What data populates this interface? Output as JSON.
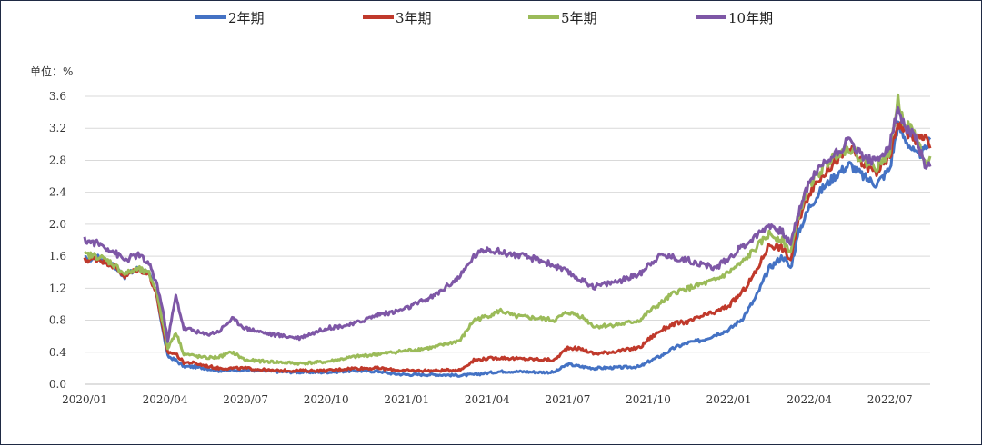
{
  "chart_data": {
    "type": "line",
    "unit_label": "单位：%",
    "ylim": [
      0,
      3.6
    ],
    "y_ticks": [
      "0.0",
      "0.4",
      "0.8",
      "1.2",
      "1.6",
      "2.0",
      "2.4",
      "2.8",
      "3.2",
      "3.6"
    ],
    "x_ticks": [
      "2020/01",
      "2020/04",
      "2020/07",
      "2020/10",
      "2021/01",
      "2021/04",
      "2021/07",
      "2021/10",
      "2022/01",
      "2022/04",
      "2022/07"
    ],
    "grid": true,
    "legend_position": "top",
    "x_range_months": [
      0,
      31.5
    ],
    "series": [
      {
        "name": "2年期",
        "color": "#4472c4",
        "points": [
          [
            0,
            1.56
          ],
          [
            0.5,
            1.58
          ],
          [
            1.0,
            1.5
          ],
          [
            1.5,
            1.35
          ],
          [
            2.0,
            1.45
          ],
          [
            2.4,
            1.38
          ],
          [
            2.7,
            1.1
          ],
          [
            2.9,
            0.7
          ],
          [
            3.1,
            0.35
          ],
          [
            3.4,
            0.3
          ],
          [
            3.7,
            0.22
          ],
          [
            4.0,
            0.22
          ],
          [
            4.5,
            0.2
          ],
          [
            5.0,
            0.17
          ],
          [
            6.0,
            0.18
          ],
          [
            7.0,
            0.16
          ],
          [
            8.0,
            0.15
          ],
          [
            9.0,
            0.15
          ],
          [
            10.0,
            0.17
          ],
          [
            11.0,
            0.16
          ],
          [
            11.5,
            0.13
          ],
          [
            12.0,
            0.12
          ],
          [
            13.0,
            0.12
          ],
          [
            14.0,
            0.11
          ],
          [
            14.5,
            0.12
          ],
          [
            15.0,
            0.14
          ],
          [
            15.5,
            0.16
          ],
          [
            16.0,
            0.16
          ],
          [
            17.0,
            0.15
          ],
          [
            17.5,
            0.15
          ],
          [
            18.0,
            0.25
          ],
          [
            18.5,
            0.22
          ],
          [
            19.0,
            0.2
          ],
          [
            20.0,
            0.21
          ],
          [
            20.7,
            0.22
          ],
          [
            21.0,
            0.28
          ],
          [
            21.5,
            0.36
          ],
          [
            22.0,
            0.46
          ],
          [
            22.5,
            0.52
          ],
          [
            23.0,
            0.55
          ],
          [
            23.5,
            0.62
          ],
          [
            24.0,
            0.68
          ],
          [
            24.5,
            0.82
          ],
          [
            25.0,
            1.08
          ],
          [
            25.5,
            1.45
          ],
          [
            26.0,
            1.6
          ],
          [
            26.3,
            1.45
          ],
          [
            26.6,
            1.9
          ],
          [
            27.0,
            2.22
          ],
          [
            27.5,
            2.45
          ],
          [
            28.0,
            2.62
          ],
          [
            28.5,
            2.75
          ],
          [
            29.0,
            2.6
          ],
          [
            29.5,
            2.5
          ],
          [
            30.0,
            2.7
          ],
          [
            30.3,
            3.25
          ],
          [
            30.5,
            3.1
          ],
          [
            31.0,
            2.85
          ],
          [
            31.3,
            2.92
          ],
          [
            31.5,
            3.06
          ]
        ]
      },
      {
        "name": "3年期",
        "color": "#c0392b",
        "points": [
          [
            0,
            1.55
          ],
          [
            0.5,
            1.57
          ],
          [
            1.0,
            1.5
          ],
          [
            1.5,
            1.35
          ],
          [
            2.0,
            1.44
          ],
          [
            2.4,
            1.38
          ],
          [
            2.7,
            1.1
          ],
          [
            2.9,
            0.72
          ],
          [
            3.1,
            0.4
          ],
          [
            3.4,
            0.38
          ],
          [
            3.7,
            0.27
          ],
          [
            4.0,
            0.27
          ],
          [
            4.5,
            0.23
          ],
          [
            5.0,
            0.2
          ],
          [
            6.0,
            0.2
          ],
          [
            7.0,
            0.17
          ],
          [
            8.0,
            0.17
          ],
          [
            9.0,
            0.17
          ],
          [
            10.0,
            0.2
          ],
          [
            11.0,
            0.2
          ],
          [
            11.5,
            0.18
          ],
          [
            12.0,
            0.17
          ],
          [
            13.0,
            0.17
          ],
          [
            14.0,
            0.18
          ],
          [
            14.5,
            0.3
          ],
          [
            15.0,
            0.32
          ],
          [
            15.5,
            0.33
          ],
          [
            16.0,
            0.32
          ],
          [
            17.0,
            0.31
          ],
          [
            17.5,
            0.3
          ],
          [
            18.0,
            0.46
          ],
          [
            18.5,
            0.44
          ],
          [
            19.0,
            0.38
          ],
          [
            20.0,
            0.42
          ],
          [
            20.7,
            0.46
          ],
          [
            21.0,
            0.56
          ],
          [
            21.5,
            0.68
          ],
          [
            22.0,
            0.76
          ],
          [
            22.5,
            0.78
          ],
          [
            23.0,
            0.85
          ],
          [
            23.5,
            0.9
          ],
          [
            24.0,
            0.98
          ],
          [
            24.5,
            1.15
          ],
          [
            25.0,
            1.4
          ],
          [
            25.5,
            1.75
          ],
          [
            26.0,
            1.7
          ],
          [
            26.3,
            1.55
          ],
          [
            26.6,
            2.05
          ],
          [
            27.0,
            2.4
          ],
          [
            27.5,
            2.62
          ],
          [
            28.0,
            2.8
          ],
          [
            28.5,
            2.95
          ],
          [
            29.0,
            2.75
          ],
          [
            29.5,
            2.65
          ],
          [
            30.0,
            2.85
          ],
          [
            30.3,
            3.28
          ],
          [
            30.5,
            3.2
          ],
          [
            31.0,
            3.05
          ],
          [
            31.3,
            3.12
          ],
          [
            31.5,
            2.95
          ]
        ]
      },
      {
        "name": "5年期",
        "color": "#9bbb59",
        "points": [
          [
            0,
            1.62
          ],
          [
            0.5,
            1.6
          ],
          [
            1.0,
            1.52
          ],
          [
            1.5,
            1.38
          ],
          [
            2.0,
            1.44
          ],
          [
            2.4,
            1.38
          ],
          [
            2.7,
            1.15
          ],
          [
            2.9,
            0.8
          ],
          [
            3.1,
            0.45
          ],
          [
            3.4,
            0.65
          ],
          [
            3.7,
            0.38
          ],
          [
            4.0,
            0.36
          ],
          [
            4.5,
            0.33
          ],
          [
            5.0,
            0.34
          ],
          [
            5.5,
            0.4
          ],
          [
            6.0,
            0.3
          ],
          [
            7.0,
            0.28
          ],
          [
            8.0,
            0.26
          ],
          [
            9.0,
            0.28
          ],
          [
            10.0,
            0.34
          ],
          [
            11.0,
            0.38
          ],
          [
            11.5,
            0.4
          ],
          [
            12.0,
            0.42
          ],
          [
            13.0,
            0.46
          ],
          [
            14.0,
            0.55
          ],
          [
            14.5,
            0.8
          ],
          [
            15.0,
            0.85
          ],
          [
            15.5,
            0.92
          ],
          [
            16.0,
            0.85
          ],
          [
            17.0,
            0.82
          ],
          [
            17.5,
            0.8
          ],
          [
            18.0,
            0.9
          ],
          [
            18.5,
            0.85
          ],
          [
            19.0,
            0.72
          ],
          [
            20.0,
            0.75
          ],
          [
            20.7,
            0.8
          ],
          [
            21.0,
            0.9
          ],
          [
            21.5,
            1.02
          ],
          [
            22.0,
            1.15
          ],
          [
            22.5,
            1.2
          ],
          [
            23.0,
            1.25
          ],
          [
            23.5,
            1.3
          ],
          [
            24.0,
            1.4
          ],
          [
            24.5,
            1.52
          ],
          [
            25.0,
            1.7
          ],
          [
            25.5,
            1.88
          ],
          [
            26.0,
            1.8
          ],
          [
            26.3,
            1.65
          ],
          [
            26.6,
            2.12
          ],
          [
            27.0,
            2.5
          ],
          [
            27.5,
            2.7
          ],
          [
            28.0,
            2.88
          ],
          [
            28.5,
            2.96
          ],
          [
            29.0,
            2.8
          ],
          [
            29.5,
            2.72
          ],
          [
            30.0,
            2.92
          ],
          [
            30.3,
            3.55
          ],
          [
            30.5,
            3.3
          ],
          [
            31.0,
            3.1
          ],
          [
            31.3,
            2.75
          ],
          [
            31.5,
            2.85
          ]
        ]
      },
      {
        "name": "10年期",
        "color": "#7e57a6",
        "points": [
          [
            0,
            1.8
          ],
          [
            0.5,
            1.76
          ],
          [
            1.0,
            1.68
          ],
          [
            1.5,
            1.55
          ],
          [
            2.0,
            1.62
          ],
          [
            2.4,
            1.5
          ],
          [
            2.7,
            1.25
          ],
          [
            2.9,
            0.95
          ],
          [
            3.1,
            0.55
          ],
          [
            3.4,
            1.1
          ],
          [
            3.7,
            0.7
          ],
          [
            4.0,
            0.68
          ],
          [
            4.5,
            0.62
          ],
          [
            5.0,
            0.66
          ],
          [
            5.5,
            0.82
          ],
          [
            6.0,
            0.7
          ],
          [
            7.0,
            0.62
          ],
          [
            8.0,
            0.58
          ],
          [
            9.0,
            0.7
          ],
          [
            10.0,
            0.75
          ],
          [
            11.0,
            0.88
          ],
          [
            11.5,
            0.9
          ],
          [
            12.0,
            0.95
          ],
          [
            13.0,
            1.1
          ],
          [
            14.0,
            1.35
          ],
          [
            14.5,
            1.6
          ],
          [
            15.0,
            1.7
          ],
          [
            15.5,
            1.65
          ],
          [
            16.0,
            1.62
          ],
          [
            17.0,
            1.55
          ],
          [
            17.5,
            1.48
          ],
          [
            18.0,
            1.4
          ],
          [
            18.5,
            1.3
          ],
          [
            19.0,
            1.22
          ],
          [
            20.0,
            1.3
          ],
          [
            20.7,
            1.38
          ],
          [
            21.0,
            1.5
          ],
          [
            21.5,
            1.62
          ],
          [
            22.0,
            1.58
          ],
          [
            22.5,
            1.55
          ],
          [
            23.0,
            1.5
          ],
          [
            23.5,
            1.45
          ],
          [
            24.0,
            1.58
          ],
          [
            24.5,
            1.72
          ],
          [
            25.0,
            1.85
          ],
          [
            25.5,
            2.0
          ],
          [
            26.0,
            1.9
          ],
          [
            26.3,
            1.75
          ],
          [
            26.6,
            2.15
          ],
          [
            27.0,
            2.55
          ],
          [
            27.5,
            2.75
          ],
          [
            28.0,
            2.9
          ],
          [
            28.5,
            3.05
          ],
          [
            29.0,
            2.85
          ],
          [
            29.5,
            2.78
          ],
          [
            30.0,
            3.0
          ],
          [
            30.3,
            3.45
          ],
          [
            30.5,
            3.25
          ],
          [
            31.0,
            3.05
          ],
          [
            31.3,
            2.72
          ],
          [
            31.5,
            2.72
          ]
        ]
      }
    ]
  }
}
